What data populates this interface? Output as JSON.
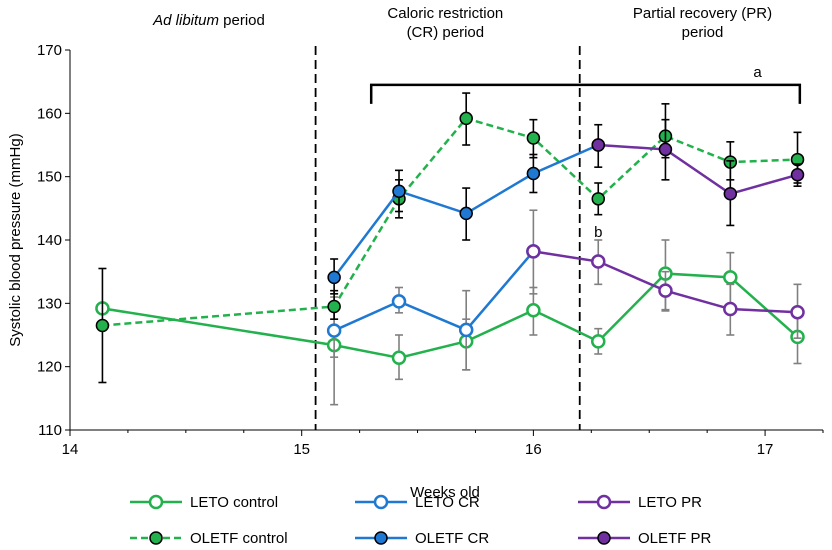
{
  "chart_data": {
    "type": "line",
    "ylabel": "Systolic blood pressure (mmHg)",
    "xlabel": "Weeks old",
    "ylim": [
      110,
      170
    ],
    "yticks": [
      110,
      120,
      130,
      140,
      150,
      160,
      170
    ],
    "xlim": [
      14,
      17.25
    ],
    "xticks": [
      14,
      15,
      16,
      17
    ],
    "period_dividers": [
      15.06,
      16.2
    ],
    "periods": [
      {
        "italic": "Ad libitum",
        "rest": " period",
        "x": 14.6
      },
      {
        "line1": "Caloric restriction",
        "line2": "(CR) period",
        "x": 15.62
      },
      {
        "line1": "Partial recovery (PR)",
        "line2": "period",
        "x": 16.73
      }
    ],
    "annotations": {
      "bracket_label": "a",
      "bracket_from": 15.3,
      "bracket_to": 17.15,
      "bracket_y": 164.5,
      "b_label": "b",
      "b_x": 16.28,
      "b_y": 140.5
    },
    "series": [
      {
        "name": "LETO control",
        "color": "#22b14c",
        "dashed": false,
        "filled": false,
        "points": [
          {
            "x": 14.14,
            "y": 129.2,
            "lo": 129.2,
            "hi": 129.2
          },
          {
            "x": 15.14,
            "y": 123.4,
            "lo": 114.0,
            "hi": 131.0
          },
          {
            "x": 15.42,
            "y": 121.4,
            "lo": 118.0,
            "hi": 125.0
          },
          {
            "x": 15.71,
            "y": 124.0,
            "lo": 119.5,
            "hi": 127.5
          },
          {
            "x": 16.0,
            "y": 128.9,
            "lo": 125.0,
            "hi": 132.5
          },
          {
            "x": 16.28,
            "y": 124.0,
            "lo": 122.0,
            "hi": 126.0
          },
          {
            "x": 16.57,
            "y": 134.7,
            "lo": 129.0,
            "hi": 140.0
          },
          {
            "x": 16.85,
            "y": 134.1,
            "lo": 129.5,
            "hi": 138.0
          },
          {
            "x": 17.14,
            "y": 124.7,
            "lo": 120.5,
            "hi": 128.0
          }
        ]
      },
      {
        "name": "LETO CR",
        "color": "#1f78d1",
        "dashed": false,
        "filled": false,
        "points": [
          {
            "x": 15.14,
            "y": 125.7,
            "lo": 121.5,
            "hi": 130.0
          },
          {
            "x": 15.42,
            "y": 130.3,
            "lo": 128.5,
            "hi": 132.5
          },
          {
            "x": 15.71,
            "y": 125.8,
            "lo": 119.5,
            "hi": 132.0
          },
          {
            "x": 16.0,
            "y": 138.2,
            "lo": 131.5,
            "hi": 144.7
          }
        ]
      },
      {
        "name": "LETO PR",
        "color": "#7030a0",
        "dashed": false,
        "filled": false,
        "points": [
          {
            "x": 16.0,
            "y": 138.2,
            "lo": 138.2,
            "hi": 138.2
          },
          {
            "x": 16.28,
            "y": 136.6,
            "lo": 133.0,
            "hi": 140.0
          },
          {
            "x": 16.57,
            "y": 132.0,
            "lo": 128.8,
            "hi": 135.0
          },
          {
            "x": 16.85,
            "y": 129.1,
            "lo": 125.0,
            "hi": 133.0
          },
          {
            "x": 17.14,
            "y": 128.6,
            "lo": 124.5,
            "hi": 133.0
          }
        ]
      },
      {
        "name": "OLETF control",
        "color": "#22b14c",
        "dashed": true,
        "filled": true,
        "points": [
          {
            "x": 14.14,
            "y": 126.5,
            "lo": 117.5,
            "hi": 135.5
          },
          {
            "x": 15.14,
            "y": 129.5,
            "lo": 127.5,
            "hi": 132.0
          },
          {
            "x": 15.42,
            "y": 146.5,
            "lo": 143.5,
            "hi": 149.5
          },
          {
            "x": 15.71,
            "y": 159.2,
            "lo": 155.0,
            "hi": 163.2
          },
          {
            "x": 16.0,
            "y": 156.1,
            "lo": 153.0,
            "hi": 159.0
          },
          {
            "x": 16.28,
            "y": 146.5,
            "lo": 144.0,
            "hi": 149.0
          },
          {
            "x": 16.57,
            "y": 156.4,
            "lo": 153.0,
            "hi": 159.0
          },
          {
            "x": 16.85,
            "y": 152.3,
            "lo": 149.5,
            "hi": 155.5
          },
          {
            "x": 17.14,
            "y": 152.7,
            "lo": 149.0,
            "hi": 157.0
          }
        ]
      },
      {
        "name": "OLETF CR",
        "color": "#1f78d1",
        "dashed": false,
        "filled": true,
        "points": [
          {
            "x": 15.14,
            "y": 134.1,
            "lo": 131.5,
            "hi": 137.0
          },
          {
            "x": 15.42,
            "y": 147.7,
            "lo": 144.5,
            "hi": 151.0
          },
          {
            "x": 15.71,
            "y": 144.2,
            "lo": 140.0,
            "hi": 148.2
          },
          {
            "x": 16.0,
            "y": 150.5,
            "lo": 147.5,
            "hi": 153.5
          },
          {
            "x": 16.28,
            "y": 155.0,
            "lo": 151.5,
            "hi": 158.2
          }
        ]
      },
      {
        "name": "OLETF PR",
        "color": "#7030a0",
        "dashed": false,
        "filled": true,
        "points": [
          {
            "x": 16.28,
            "y": 155.0,
            "lo": 155.0,
            "hi": 155.0
          },
          {
            "x": 16.57,
            "y": 154.3,
            "lo": 149.5,
            "hi": 161.5
          },
          {
            "x": 16.85,
            "y": 147.3,
            "lo": 142.3,
            "hi": 152.5
          },
          {
            "x": 17.14,
            "y": 150.3,
            "lo": 148.5,
            "hi": 152.0
          }
        ]
      }
    ],
    "legend_order": [
      "LETO control",
      "LETO CR",
      "LETO PR",
      "OLETF control",
      "OLETF CR",
      "OLETF PR"
    ]
  }
}
